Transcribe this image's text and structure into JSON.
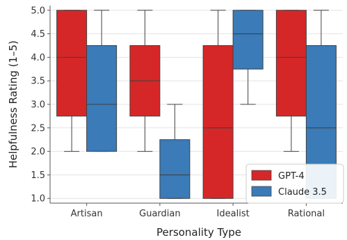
{
  "chart_data": {
    "type": "box",
    "title": "",
    "xlabel": "Personality Type",
    "ylabel": "Helpfulness Rating (1–5)",
    "ylim": [
      0.9,
      5.1
    ],
    "yticks": [
      1.0,
      1.5,
      2.0,
      2.5,
      3.0,
      3.5,
      4.0,
      4.5,
      5.0
    ],
    "ytick_labels": [
      "1.0",
      "1.5",
      "2.0",
      "2.5",
      "3.0",
      "3.5",
      "4.0",
      "4.5",
      "5.0"
    ],
    "categories": [
      "Artisan",
      "Guardian",
      "Idealist",
      "Rational"
    ],
    "grid": true,
    "legend_position": "lower-right",
    "series": [
      {
        "name": "GPT-4",
        "color": "#d62728",
        "boxes": [
          {
            "whisker_low": 2.0,
            "q1": 2.75,
            "median": 4.0,
            "q3": 5.0,
            "whisker_high": 5.0
          },
          {
            "whisker_low": 2.0,
            "q1": 2.75,
            "median": 3.5,
            "q3": 4.25,
            "whisker_high": 5.0
          },
          {
            "whisker_low": 1.0,
            "q1": 1.0,
            "median": 2.5,
            "q3": 4.25,
            "whisker_high": 5.0
          },
          {
            "whisker_low": 2.0,
            "q1": 2.75,
            "median": 4.0,
            "q3": 5.0,
            "whisker_high": 5.0
          }
        ]
      },
      {
        "name": "Claude 3.5",
        "color": "#3a7bb8",
        "boxes": [
          {
            "whisker_low": 2.0,
            "q1": 2.0,
            "median": 3.0,
            "q3": 4.25,
            "whisker_high": 5.0
          },
          {
            "whisker_low": 1.0,
            "q1": 1.0,
            "median": 1.5,
            "q3": 2.25,
            "whisker_high": 3.0
          },
          {
            "whisker_low": 3.0,
            "q1": 3.75,
            "median": 4.5,
            "q3": 5.0,
            "whisker_high": 5.0
          },
          {
            "whisker_low": 1.0,
            "q1": 1.0,
            "median": 2.5,
            "q3": 4.25,
            "whisker_high": 5.0
          }
        ]
      }
    ]
  }
}
